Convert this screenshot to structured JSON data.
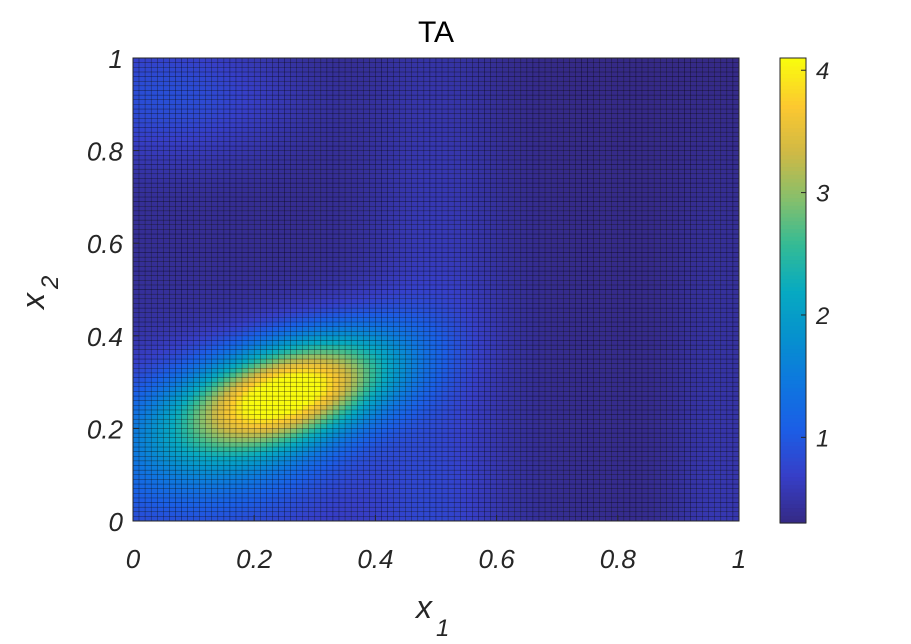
{
  "chart_data": {
    "type": "heatmap",
    "title": "TA",
    "xlabel": "x",
    "xlabel_subscript": "1",
    "ylabel": "x",
    "ylabel_subscript": "2",
    "xlim": [
      0,
      1
    ],
    "ylim": [
      0,
      1
    ],
    "x_ticks": [
      "0",
      "0.2",
      "0.4",
      "0.6",
      "0.8",
      "1"
    ],
    "y_ticks": [
      "0",
      "0.2",
      "0.4",
      "0.6",
      "0.8",
      "1"
    ],
    "colorbar_ticks": [
      "1",
      "2",
      "3",
      "4"
    ],
    "clim": [
      0.3,
      4.1
    ],
    "colormap": "parula",
    "grid_resolution": 100,
    "mesh_edge_color": "#000000",
    "surface_model": {
      "base": 0.3,
      "peak": {
        "center": [
          0.26,
          0.28
        ],
        "amplitude": 3.75,
        "sx": 0.12,
        "sy": 0.085,
        "rho": 0.45
      },
      "lower_left_lobe": {
        "center": [
          0.12,
          0.15
        ],
        "amplitude": 0.9,
        "sx": 0.16,
        "sy": 0.12
      },
      "upper_left_band": {
        "center": [
          0.05,
          0.92
        ],
        "amplitude": 0.55,
        "sx": 0.15,
        "sy": 0.1
      },
      "ridge_x": {
        "center": 0.5,
        "amplitude": 0.35,
        "sx": 0.08
      },
      "right_valley_level": 0.35
    }
  }
}
